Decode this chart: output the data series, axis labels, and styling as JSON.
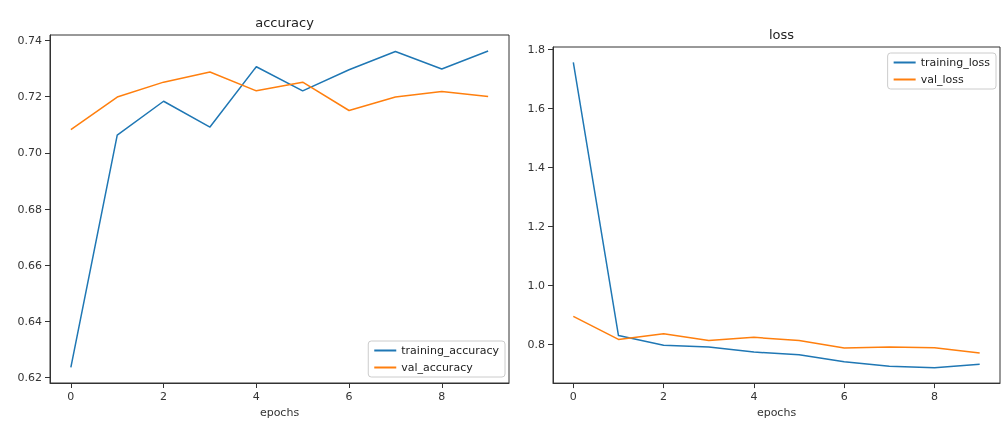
{
  "chart_data": [
    {
      "type": "line",
      "title": "accuracy",
      "xlabel": "epochs",
      "x": [
        0,
        1,
        2,
        3,
        4,
        5,
        6,
        7,
        8,
        9
      ],
      "series": [
        {
          "name": "training_accuracy",
          "color": "#1f77b4",
          "values": [
            0.6236,
            0.7063,
            0.7184,
            0.7092,
            0.7307,
            0.7221,
            0.7296,
            0.7361,
            0.7299,
            0.7363
          ]
        },
        {
          "name": "val_accuracy",
          "color": "#ff7f0e",
          "values": [
            0.7083,
            0.7199,
            0.7252,
            0.7288,
            0.7221,
            0.7252,
            0.7151,
            0.7199,
            0.7219,
            0.7201
          ]
        }
      ],
      "xlim": [
        -0.45,
        9.45
      ],
      "xticks": [
        0,
        2,
        4,
        6,
        8
      ],
      "ylim": [
        0.618,
        0.742
      ],
      "yticks": [
        0.62,
        0.64,
        0.66,
        0.68,
        {
          "value": 0.7,
          "label": "0.70"
        },
        0.72,
        0.74
      ],
      "grid": false,
      "legend": "bottom right",
      "marker": "none",
      "line_style": "solid"
    },
    {
      "type": "line",
      "title": "loss",
      "xlabel": "epochs",
      "x": [
        0,
        1,
        2,
        3,
        4,
        5,
        6,
        7,
        8,
        9
      ],
      "series": [
        {
          "name": "training_loss",
          "color": "#1f77b4",
          "values": [
            1.755,
            0.829,
            0.796,
            0.79,
            0.773,
            0.764,
            0.74,
            0.725,
            0.72,
            0.732
          ]
        },
        {
          "name": "val_loss",
          "color": "#ff7f0e",
          "values": [
            0.894,
            0.816,
            0.835,
            0.812,
            0.823,
            0.812,
            0.787,
            0.79,
            0.788,
            0.77
          ]
        }
      ],
      "xlim": [
        -0.45,
        9.45
      ],
      "xticks": [
        0,
        2,
        4,
        6,
        8
      ],
      "ylim": [
        0.668,
        1.807
      ],
      "yticks": [
        0.8,
        {
          "value": 1,
          "label": "1.0"
        },
        1.2,
        1.4,
        1.6,
        1.8
      ],
      "grid": false,
      "legend": "top right",
      "marker": "none",
      "line_style": "solid"
    }
  ]
}
